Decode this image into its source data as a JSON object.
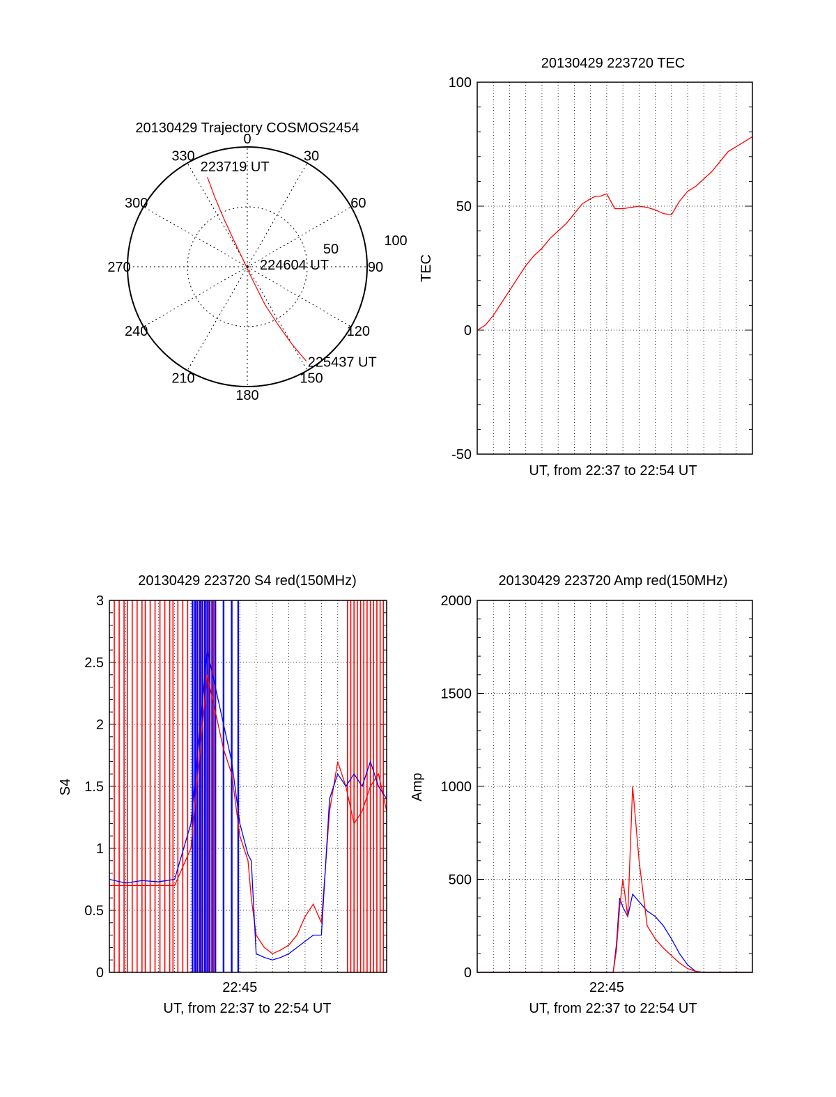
{
  "colors": {
    "red": "#ff0000",
    "blue": "#0000ff",
    "axis": "#000000",
    "grid": "#000000"
  },
  "chart_data": [
    {
      "id": "trajectory",
      "type": "polar",
      "title": "20130429 Trajectory COSMOS2454",
      "azimuth_labels": [
        "0",
        "30",
        "60",
        "90",
        "120",
        "150",
        "180",
        "210",
        "240",
        "270",
        "300",
        "330"
      ],
      "elevation_ring_labels": [
        "50",
        "100"
      ],
      "rmax": 100,
      "track": {
        "color": "red",
        "points": [
          {
            "az": 336,
            "r": 82
          },
          {
            "az": 335,
            "r": 65
          },
          {
            "az": 334,
            "r": 45
          },
          {
            "az": 333,
            "r": 25
          },
          {
            "az": 330,
            "r": 8
          },
          {
            "az": 158,
            "r": 12
          },
          {
            "az": 155,
            "r": 35
          },
          {
            "az": 152,
            "r": 55
          },
          {
            "az": 150,
            "r": 75
          },
          {
            "az": 148,
            "r": 93
          }
        ]
      },
      "annotations": [
        {
          "text": "223719 UT",
          "az": 336,
          "r": 82
        },
        {
          "text": "224604 UT",
          "az": 0,
          "r": 0
        },
        {
          "text": "225437 UT",
          "az": 148,
          "r": 93
        }
      ]
    },
    {
      "id": "tec",
      "type": "line",
      "title": "20130429 223720 TEC",
      "xlabel": "UT, from 22:37 to 22:54 UT",
      "ylabel": "TEC",
      "xlim": [
        0,
        17
      ],
      "ylim": [
        -50,
        100
      ],
      "yticks": [
        -50,
        0,
        50,
        100
      ],
      "xticks": [],
      "grid": true,
      "series": [
        {
          "color": "red",
          "x": [
            0,
            0.5,
            1,
            1.5,
            2,
            2.5,
            3,
            3.5,
            4,
            4.5,
            5,
            5.5,
            6,
            6.5,
            7,
            7.3,
            7.6,
            8,
            8.5,
            9,
            9.5,
            10,
            10.5,
            11,
            11.5,
            12,
            12.5,
            13,
            13.5,
            14,
            14.5,
            15,
            15.5,
            16,
            16.5,
            17
          ],
          "y": [
            0,
            2,
            6,
            11,
            16,
            21,
            26,
            30,
            33,
            37,
            40,
            43,
            47,
            51,
            53,
            54,
            54,
            55,
            49,
            49,
            49.5,
            50,
            49.5,
            48.5,
            47,
            46.5,
            52,
            56,
            58,
            61,
            64,
            68,
            72,
            74,
            76,
            78
          ]
        }
      ]
    },
    {
      "id": "s4",
      "type": "line",
      "title": "20130429 223720 S4 red(150MHz)",
      "xlabel": "UT, from 22:37 to 22:54 UT",
      "ylabel": "S4",
      "xlim": [
        0,
        17
      ],
      "ylim": [
        0,
        3
      ],
      "yticks": [
        0,
        0.5,
        1,
        1.5,
        2,
        2.5,
        3
      ],
      "xticks": [
        {
          "value": 8,
          "label": "22:45"
        }
      ],
      "grid": true,
      "red_spikes_x": [
        0.3,
        0.6,
        0.9,
        1.1,
        1.4,
        1.7,
        2.0,
        2.2,
        2.5,
        2.8,
        3.1,
        3.4,
        3.7,
        3.9,
        4.2,
        4.5,
        4.8,
        5.3,
        5.6,
        5.9,
        6.1,
        6.4,
        14.6,
        14.8,
        15.0,
        15.2,
        15.4,
        15.6,
        15.8,
        16.0,
        16.2,
        16.4,
        16.6,
        16.8
      ],
      "blue_spikes_x": [
        5.1,
        5.25,
        5.4,
        5.55,
        5.7,
        5.85,
        6.0,
        6.15,
        6.3,
        6.5,
        7.0,
        7.5,
        7.9
      ],
      "series": [
        {
          "name": "red",
          "color": "red",
          "x": [
            0,
            1,
            2,
            3,
            4,
            5,
            6,
            7,
            7.5,
            8,
            8.5,
            8.7,
            9,
            9.5,
            10,
            10.5,
            11,
            11.5,
            12,
            12.5,
            13,
            13.5,
            14,
            14.5,
            15,
            15.5,
            16,
            16.5,
            17
          ],
          "y": [
            0.7,
            0.7,
            0.7,
            0.7,
            0.7,
            1.0,
            2.4,
            1.8,
            1.6,
            1.1,
            0.9,
            0.6,
            0.3,
            0.2,
            0.15,
            0.18,
            0.22,
            0.3,
            0.45,
            0.55,
            0.4,
            1.3,
            1.7,
            1.5,
            1.2,
            1.3,
            1.5,
            1.6,
            1.3
          ]
        },
        {
          "name": "blue",
          "color": "blue",
          "x": [
            0,
            1,
            2,
            3,
            4,
            5,
            6,
            7,
            7.5,
            8,
            8.5,
            8.7,
            9,
            9.5,
            10,
            10.5,
            11,
            11.5,
            12,
            12.5,
            13,
            13.5,
            14,
            14.5,
            15,
            15.5,
            16,
            16.5,
            17
          ],
          "y": [
            0.75,
            0.72,
            0.74,
            0.73,
            0.75,
            1.2,
            2.6,
            2.0,
            1.7,
            1.2,
            0.95,
            0.9,
            0.15,
            0.12,
            0.1,
            0.12,
            0.15,
            0.2,
            0.25,
            0.3,
            0.3,
            1.4,
            1.6,
            1.5,
            1.6,
            1.5,
            1.7,
            1.5,
            1.4
          ]
        }
      ]
    },
    {
      "id": "amp",
      "type": "line",
      "title": "20130429 223720 Amp red(150MHz)",
      "xlabel": "UT, from 22:37 to 22:54 UT",
      "ylabel": "Amp",
      "xlim": [
        0,
        17
      ],
      "ylim": [
        0,
        2000
      ],
      "yticks": [
        0,
        500,
        1000,
        1500,
        2000
      ],
      "xticks": [
        {
          "value": 8,
          "label": "22:45"
        }
      ],
      "grid": true,
      "series": [
        {
          "name": "blue",
          "color": "blue",
          "x": [
            0,
            8.4,
            8.6,
            8.8,
            9.0,
            9.3,
            9.6,
            10.0,
            10.5,
            11.0,
            11.5,
            12.0,
            12.5,
            13.0,
            13.5,
            14,
            17
          ],
          "y": [
            0,
            0,
            150,
            400,
            350,
            300,
            420,
            380,
            330,
            300,
            250,
            180,
            100,
            40,
            5,
            0,
            0
          ]
        },
        {
          "name": "red",
          "color": "red",
          "x": [
            0,
            8.4,
            8.6,
            8.8,
            9.0,
            9.3,
            9.6,
            10.0,
            10.5,
            11.0,
            11.5,
            12.0,
            12.5,
            13.0,
            13.5,
            14,
            17
          ],
          "y": [
            0,
            0,
            120,
            350,
            500,
            300,
            1000,
            600,
            250,
            180,
            130,
            90,
            50,
            20,
            5,
            0,
            0
          ]
        }
      ]
    }
  ]
}
